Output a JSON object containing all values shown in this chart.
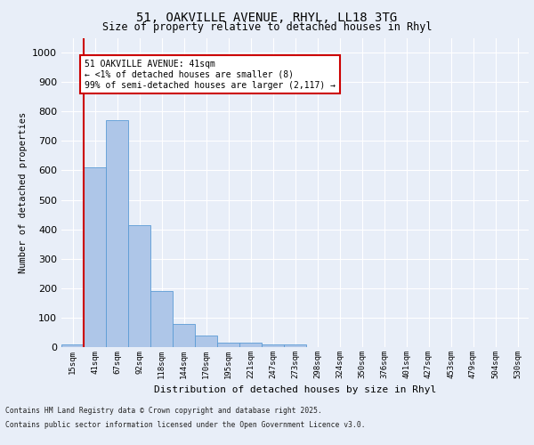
{
  "title_line1": "51, OAKVILLE AVENUE, RHYL, LL18 3TG",
  "title_line2": "Size of property relative to detached houses in Rhyl",
  "xlabel": "Distribution of detached houses by size in Rhyl",
  "ylabel": "Number of detached properties",
  "categories": [
    "15sqm",
    "41sqm",
    "67sqm",
    "92sqm",
    "118sqm",
    "144sqm",
    "170sqm",
    "195sqm",
    "221sqm",
    "247sqm",
    "273sqm",
    "298sqm",
    "324sqm",
    "350sqm",
    "376sqm",
    "401sqm",
    "427sqm",
    "453sqm",
    "479sqm",
    "504sqm",
    "530sqm"
  ],
  "values": [
    10,
    610,
    770,
    415,
    190,
    80,
    40,
    15,
    15,
    10,
    10,
    0,
    0,
    0,
    0,
    0,
    0,
    0,
    0,
    0,
    0
  ],
  "bar_color": "#aec6e8",
  "bar_edge_color": "#5b9bd5",
  "highlight_bar_index": 1,
  "highlight_line_color": "#cc0000",
  "ylim": [
    0,
    1050
  ],
  "yticks": [
    0,
    100,
    200,
    300,
    400,
    500,
    600,
    700,
    800,
    900,
    1000
  ],
  "annotation_text": "51 OAKVILLE AVENUE: 41sqm\n← <1% of detached houses are smaller (8)\n99% of semi-detached houses are larger (2,117) →",
  "annotation_box_edge_color": "#cc0000",
  "footer_line1": "Contains HM Land Registry data © Crown copyright and database right 2025.",
  "footer_line2": "Contains public sector information licensed under the Open Government Licence v3.0.",
  "background_color": "#e8eef8",
  "grid_color": "#ffffff",
  "axis_bg_color": "#e8eef8"
}
